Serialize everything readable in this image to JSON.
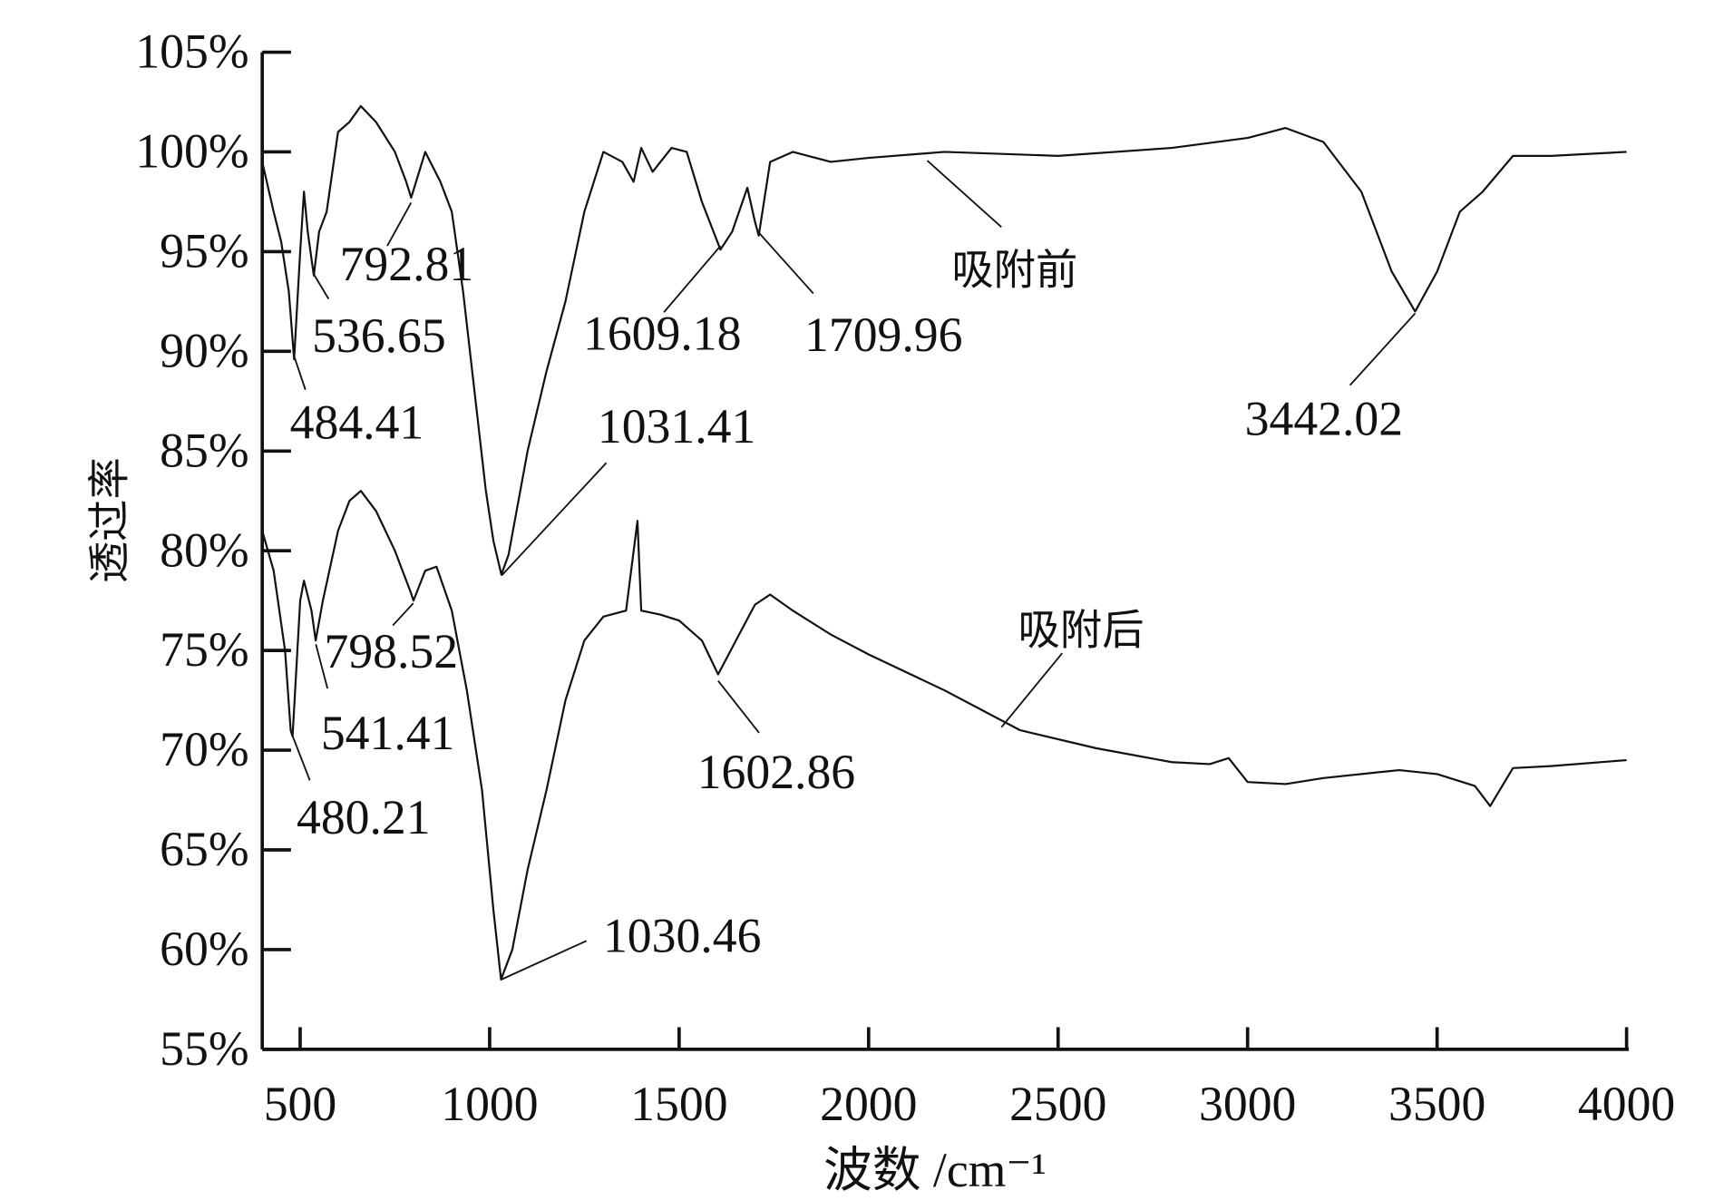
{
  "chart_data": {
    "type": "line",
    "x_label": "波数 /cm⁻¹",
    "y_label": "透过率",
    "xlim": [
      400,
      4000
    ],
    "xticks": [
      500,
      1000,
      1500,
      2000,
      2500,
      3000,
      3500,
      4000
    ],
    "ylim": [
      55,
      105
    ],
    "yticks": [
      {
        "value": 55,
        "label": "55%"
      },
      {
        "value": 60,
        "label": "60%"
      },
      {
        "value": 65,
        "label": "65%"
      },
      {
        "value": 70,
        "label": "70%"
      },
      {
        "value": 75,
        "label": "75%"
      },
      {
        "value": 80,
        "label": "80%"
      },
      {
        "value": 85,
        "label": "85%"
      },
      {
        "value": 90,
        "label": "90%"
      },
      {
        "value": 95,
        "label": "95%"
      },
      {
        "value": 100,
        "label": "100%"
      },
      {
        "value": 105,
        "label": "105%"
      }
    ],
    "series": [
      {
        "name": "吸附前",
        "color": "#111111",
        "x": [
          400,
          430,
          450,
          470,
          484,
          500,
          510,
          520,
          536,
          550,
          570,
          600,
          630,
          660,
          700,
          750,
          780,
          793,
          830,
          870,
          900,
          930,
          960,
          990,
          1010,
          1031,
          1050,
          1100,
          1150,
          1200,
          1250,
          1300,
          1350,
          1380,
          1400,
          1430,
          1480,
          1520,
          1560,
          1609,
          1640,
          1680,
          1700,
          1710,
          1740,
          1800,
          1900,
          2000,
          2200,
          2500,
          2800,
          3000,
          3100,
          3200,
          3300,
          3380,
          3442,
          3500,
          3560,
          3620,
          3700,
          3800,
          4000
        ],
        "values": [
          99.5,
          97,
          95.5,
          93,
          89.6,
          95,
          98,
          96,
          93.8,
          96,
          97,
          101,
          101.5,
          102.3,
          101.5,
          100,
          98.5,
          97.7,
          100,
          98.5,
          97,
          93,
          88,
          83,
          80.5,
          78.8,
          79.8,
          85,
          89,
          92.5,
          97,
          100,
          99.5,
          98.5,
          100.2,
          99,
          100.2,
          100,
          97.5,
          95.1,
          96,
          98.2,
          96.5,
          95.8,
          99.5,
          100,
          99.5,
          99.7,
          100,
          99.8,
          100.2,
          100.7,
          101.2,
          100.5,
          98,
          94,
          92,
          94,
          97,
          98,
          99.8,
          99.8,
          100
        ],
        "peaks": [
          484.41,
          536.65,
          792.81,
          1031.41,
          1609.18,
          1709.96,
          3442.02
        ]
      },
      {
        "name": "吸附后",
        "color": "#111111",
        "x": [
          400,
          430,
          460,
          475,
          480,
          500,
          510,
          530,
          541,
          560,
          600,
          630,
          660,
          700,
          750,
          790,
          799,
          830,
          860,
          900,
          940,
          980,
          1010,
          1030,
          1060,
          1100,
          1150,
          1200,
          1250,
          1300,
          1360,
          1390,
          1400,
          1450,
          1500,
          1560,
          1603,
          1650,
          1700,
          1740,
          1800,
          1900,
          2000,
          2200,
          2400,
          2600,
          2800,
          2900,
          2950,
          3000,
          3100,
          3200,
          3400,
          3500,
          3600,
          3640,
          3700,
          3800,
          4000
        ],
        "values": [
          81,
          79,
          75,
          71,
          70.7,
          77.5,
          78.5,
          77,
          75.5,
          77.5,
          81,
          82.5,
          83,
          82,
          80,
          78,
          77.5,
          79,
          79.2,
          77,
          73,
          68,
          62,
          58.5,
          60,
          64,
          68,
          72.5,
          75.5,
          76.7,
          77,
          81.5,
          77,
          76.8,
          76.5,
          75.5,
          73.8,
          75.5,
          77.3,
          77.8,
          77,
          75.8,
          74.8,
          73,
          71,
          70.1,
          69.4,
          69.3,
          69.6,
          68.4,
          68.3,
          68.6,
          69,
          68.8,
          68.2,
          67.2,
          69.1,
          69.2,
          69.5
        ],
        "peaks": [
          480.21,
          541.41,
          798.52,
          1030.46,
          1602.86
        ]
      }
    ]
  }
}
